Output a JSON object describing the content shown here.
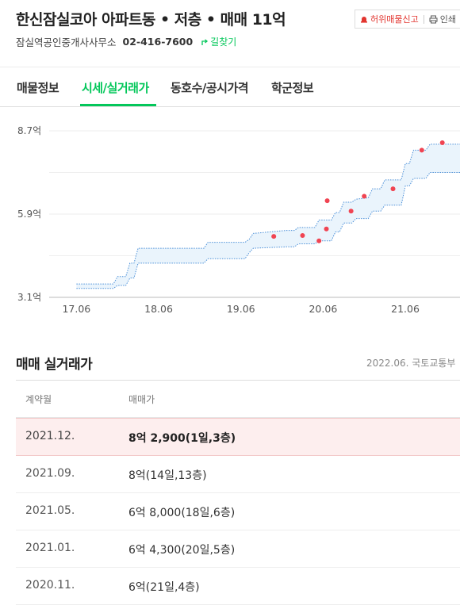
{
  "header": {
    "title": "한신잠실코아 아파트동 • 저층 • 매매 11억",
    "report_label": "허위매물신고",
    "print_label": "인쇄",
    "agent_name": "잠실역공인중개사사무소",
    "agent_phone": "02-416-7600",
    "directions_label": "길찾기"
  },
  "tabs": [
    {
      "label": "매물정보"
    },
    {
      "label": "시세/실거래가"
    },
    {
      "label": "동호수/공시가격"
    },
    {
      "label": "학군정보"
    }
  ],
  "colors": {
    "accent": "#03c75a",
    "band_fill": "#eaf4fc",
    "band_line": "#4a8fd8",
    "point": "#f04452",
    "report": "#e2352f"
  },
  "chart_data": {
    "type": "scatter",
    "y_unit": "억",
    "ylim": [
      3.1,
      8.7
    ],
    "y_ticks": [
      {
        "v": 8.7,
        "label": "8.7억"
      },
      {
        "v": 5.9,
        "label": "5.9억"
      },
      {
        "v": 3.1,
        "label": "3.1억"
      }
    ],
    "xlim": [
      2017.4,
      2022.3
    ],
    "x_ticks": [
      {
        "v": 2017.5,
        "label": "17.06"
      },
      {
        "v": 2018.5,
        "label": "18.06"
      },
      {
        "v": 2019.5,
        "label": "19.06"
      },
      {
        "v": 2020.5,
        "label": "20.06"
      },
      {
        "v": 2021.5,
        "label": "21.06"
      }
    ],
    "grid": true,
    "band_upper": [
      [
        2017.5,
        3.55
      ],
      [
        2017.95,
        3.55
      ],
      [
        2018.0,
        3.8
      ],
      [
        2018.1,
        3.8
      ],
      [
        2018.15,
        4.25
      ],
      [
        2018.2,
        4.25
      ],
      [
        2018.25,
        4.75
      ],
      [
        2019.05,
        4.75
      ],
      [
        2019.1,
        4.95
      ],
      [
        2019.55,
        4.95
      ],
      [
        2019.6,
        5.05
      ],
      [
        2019.65,
        5.25
      ],
      [
        2020.05,
        5.35
      ],
      [
        2020.15,
        5.35
      ],
      [
        2020.2,
        5.45
      ],
      [
        2020.4,
        5.45
      ],
      [
        2020.45,
        5.7
      ],
      [
        2020.6,
        5.7
      ],
      [
        2020.65,
        5.95
      ],
      [
        2020.7,
        5.95
      ],
      [
        2020.75,
        6.3
      ],
      [
        2020.85,
        6.3
      ],
      [
        2020.9,
        6.4
      ],
      [
        2021.05,
        6.45
      ],
      [
        2021.1,
        6.75
      ],
      [
        2021.2,
        6.75
      ],
      [
        2021.25,
        7.05
      ],
      [
        2021.45,
        7.05
      ],
      [
        2021.5,
        7.6
      ],
      [
        2021.55,
        7.6
      ],
      [
        2021.6,
        8.05
      ],
      [
        2021.75,
        8.05
      ],
      [
        2021.8,
        8.25
      ],
      [
        2022.3,
        8.25
      ]
    ],
    "band_lower": [
      [
        2017.5,
        3.4
      ],
      [
        2017.95,
        3.4
      ],
      [
        2018.0,
        3.5
      ],
      [
        2018.1,
        3.5
      ],
      [
        2018.15,
        3.75
      ],
      [
        2018.2,
        3.75
      ],
      [
        2018.25,
        4.25
      ],
      [
        2019.05,
        4.25
      ],
      [
        2019.1,
        4.4
      ],
      [
        2019.55,
        4.4
      ],
      [
        2019.6,
        4.6
      ],
      [
        2019.65,
        4.75
      ],
      [
        2020.05,
        4.8
      ],
      [
        2020.15,
        4.8
      ],
      [
        2020.2,
        4.9
      ],
      [
        2020.4,
        4.9
      ],
      [
        2020.45,
        5.0
      ],
      [
        2020.6,
        5.0
      ],
      [
        2020.65,
        5.3
      ],
      [
        2020.7,
        5.3
      ],
      [
        2020.75,
        5.6
      ],
      [
        2020.85,
        5.6
      ],
      [
        2020.9,
        5.75
      ],
      [
        2021.05,
        5.75
      ],
      [
        2021.1,
        6.0
      ],
      [
        2021.2,
        6.0
      ],
      [
        2021.25,
        6.2
      ],
      [
        2021.45,
        6.2
      ],
      [
        2021.5,
        6.85
      ],
      [
        2021.55,
        6.85
      ],
      [
        2021.6,
        7.1
      ],
      [
        2021.75,
        7.1
      ],
      [
        2021.8,
        7.3
      ],
      [
        2022.3,
        7.3
      ]
    ],
    "points": [
      {
        "x": 2019.9,
        "y": 5.15
      },
      {
        "x": 2020.25,
        "y": 5.18
      },
      {
        "x": 2020.45,
        "y": 5.0
      },
      {
        "x": 2020.54,
        "y": 5.4
      },
      {
        "x": 2020.55,
        "y": 6.35
      },
      {
        "x": 2020.84,
        "y": 6.0
      },
      {
        "x": 2021.0,
        "y": 6.5
      },
      {
        "x": 2021.35,
        "y": 6.75
      },
      {
        "x": 2021.7,
        "y": 8.05
      },
      {
        "x": 2021.95,
        "y": 8.3
      }
    ]
  },
  "transactions": {
    "title": "매매 실거래가",
    "source": "2022.06. 국토교통부",
    "col_date": "계약월",
    "col_price": "매매가",
    "rows": [
      {
        "date": "2021.12.",
        "price": "8억 2,900(1일,3층)",
        "highlight": true
      },
      {
        "date": "2021.09.",
        "price": "8억(14일,13층)",
        "highlight": false
      },
      {
        "date": "2021.05.",
        "price": "6억 8,000(18일,6층)",
        "highlight": false
      },
      {
        "date": "2021.01.",
        "price": "6억 4,300(20일,5층)",
        "highlight": false
      },
      {
        "date": "2020.11.",
        "price": "6억(21일,4층)",
        "highlight": false
      }
    ]
  }
}
